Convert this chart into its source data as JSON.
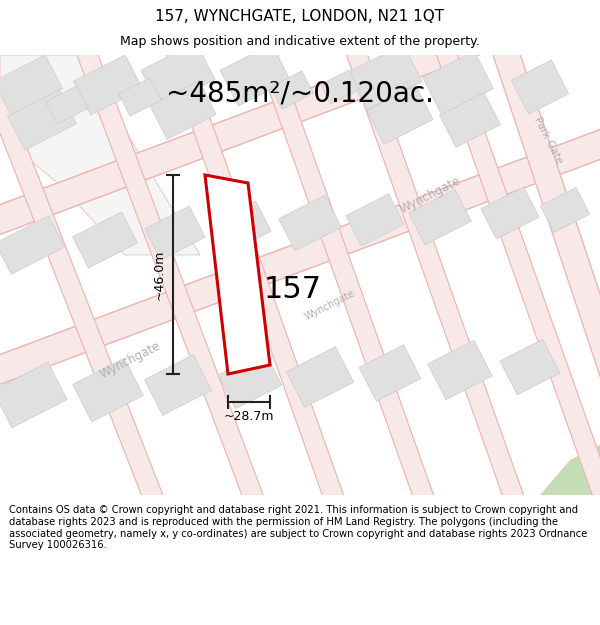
{
  "title": "157, WYNCHGATE, LONDON, N21 1QT",
  "subtitle": "Map shows position and indicative extent of the property.",
  "area_text": "~485m²/~0.120ac.",
  "label_157": "157",
  "dim_width": "~28.7m",
  "dim_height": "~46.0m",
  "footer": "Contains OS data © Crown copyright and database right 2021. This information is subject to Crown copyright and database rights 2023 and is reproduced with the permission of HM Land Registry. The polygons (including the associated geometry, namely x, y co-ordinates) are subject to Crown copyright and database rights 2023 Ordnance Survey 100026316.",
  "map_bg": "#ffffff",
  "road_line_color": "#f0b0b0",
  "road_fill_color": "#f8e8e8",
  "building_color": "#e0e0e0",
  "building_edge": "#cccccc",
  "highlight_color": "#cc0000",
  "highlight_fill": "#ffffff",
  "street_label_color": "#b0b0b0",
  "dim_line_color": "#222222",
  "title_fontsize": 11,
  "subtitle_fontsize": 9,
  "area_fontsize": 20,
  "label_fontsize": 22,
  "dim_fontsize": 9,
  "footer_fontsize": 7.2,
  "street_fontsize": 8.5
}
